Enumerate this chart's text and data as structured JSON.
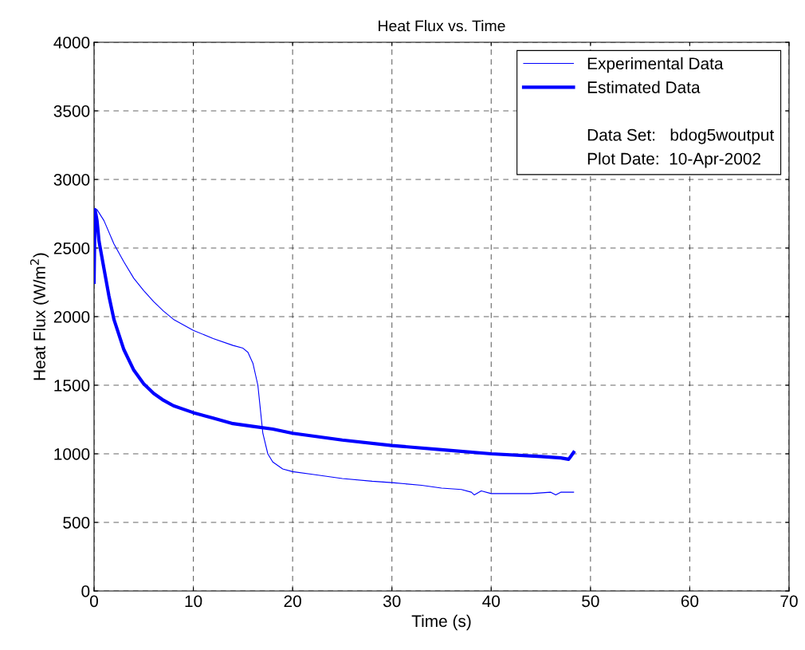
{
  "chart_data": {
    "type": "line",
    "title": "Heat Flux vs. Time",
    "xlabel": "Time (s)",
    "ylabel": "Heat Flux (W/m$^{2}$)",
    "series": [
      {
        "name": "Experimental Data",
        "color": "#0000ff",
        "x": [
          0,
          0.3,
          1,
          2,
          3,
          4,
          5,
          6,
          7,
          8,
          10,
          12,
          14,
          15,
          15.5,
          16,
          16.5,
          17,
          17.5,
          18,
          19,
          20,
          22,
          25,
          28,
          30,
          33,
          35,
          37,
          38,
          38.3,
          39,
          40,
          44,
          46,
          46.5,
          47,
          48.3
        ],
        "values": [
          2780,
          2780,
          2700,
          2530,
          2400,
          2280,
          2190,
          2110,
          2040,
          1980,
          1900,
          1840,
          1790,
          1770,
          1740,
          1660,
          1500,
          1150,
          1000,
          940,
          890,
          870,
          850,
          820,
          800,
          790,
          770,
          750,
          740,
          720,
          700,
          730,
          710,
          710,
          720,
          700,
          720,
          720
        ]
      },
      {
        "name": "Estimated Data",
        "color": "#0000ff",
        "x": [
          0,
          0.1,
          0.3,
          0.5,
          1,
          1.5,
          2,
          3,
          4,
          5,
          6,
          7,
          8,
          10,
          12,
          14,
          16,
          18,
          20,
          25,
          30,
          35,
          40,
          45,
          47,
          47.8,
          48,
          48.3
        ],
        "values": [
          2250,
          2780,
          2700,
          2550,
          2350,
          2150,
          1980,
          1760,
          1610,
          1510,
          1440,
          1390,
          1350,
          1300,
          1260,
          1220,
          1200,
          1180,
          1150,
          1100,
          1060,
          1030,
          1000,
          980,
          970,
          960,
          980,
          1010
        ]
      }
    ],
    "annotations": [
      "Data Set:   bdog5woutput",
      "Plot Date:  10-Apr-2002"
    ],
    "xlim": [
      0,
      70
    ],
    "xticks": [
      0,
      10,
      20,
      30,
      40,
      50,
      60,
      70
    ],
    "ylim": [
      0,
      4000
    ],
    "yticks": [
      0,
      500,
      1000,
      1500,
      2000,
      2500,
      3000,
      3500,
      4000
    ],
    "grid": true,
    "legend": "top right",
    "line_style": "solid",
    "marker": "none"
  }
}
